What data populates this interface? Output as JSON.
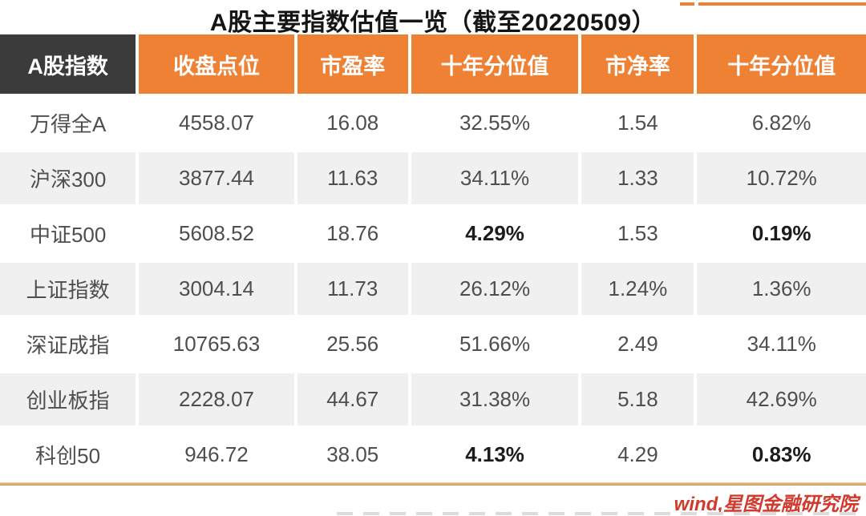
{
  "title": "A股主要指数估值一览（截至20220509）",
  "source": "wind,星图金融研究院",
  "colors": {
    "header_orange": "#EF8134",
    "header_dark": "#3B3B3B",
    "row_alt_gray": "#F0F0F0",
    "divider_tan": "#C49A60",
    "source_red": "#D13A2C",
    "body_text": "#4E4E4E"
  },
  "chart_data": {
    "type": "table",
    "title": "A股主要指数估值一览（截至20220509）",
    "columns": [
      "A股指数",
      "收盘点位",
      "市盈率",
      "十年分位值",
      "市净率",
      "十年分位值"
    ],
    "rows": [
      {
        "index": "万得全A",
        "close": "4558.07",
        "pe": "16.08",
        "pe_decile": "32.55%",
        "pb": "1.54",
        "pb_decile": "6.82%"
      },
      {
        "index": "沪深300",
        "close": "3877.44",
        "pe": "11.63",
        "pe_decile": "34.11%",
        "pb": "1.33",
        "pb_decile": "10.72%"
      },
      {
        "index": "中证500",
        "close": "5608.52",
        "pe": "18.76",
        "pe_decile": "4.29%",
        "pb": "1.53",
        "pb_decile": "0.19%"
      },
      {
        "index": "上证指数",
        "close": "3004.14",
        "pe": "11.73",
        "pe_decile": "26.12%",
        "pb": "1.24%",
        "pb_decile": "1.36%"
      },
      {
        "index": "深证成指",
        "close": "10765.63",
        "pe": "25.56",
        "pe_decile": "51.66%",
        "pb": "2.49",
        "pb_decile": "34.11%"
      },
      {
        "index": "创业板指",
        "close": "2228.07",
        "pe": "44.67",
        "pe_decile": "31.38%",
        "pb": "5.18",
        "pb_decile": "42.69%"
      },
      {
        "index": "科创50",
        "close": "946.72",
        "pe": "38.05",
        "pe_decile": "4.13%",
        "pb": "4.29",
        "pb_decile": "0.83%"
      }
    ],
    "emphasis_note": "pe_decile and pb_decile bold for 中证500 and 科创50"
  }
}
